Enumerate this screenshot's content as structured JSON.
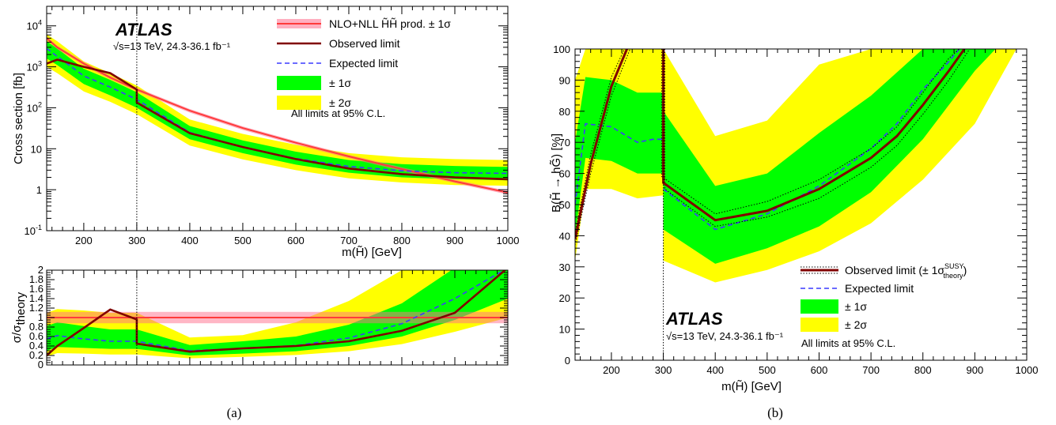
{
  "chart_data": [
    {
      "id": "a-top",
      "type": "line",
      "yscale": "log",
      "xlim": [
        130,
        1000
      ],
      "ylim": [
        0.1,
        30000
      ],
      "xlabel": "m(H̃) [GeV]",
      "ylabel": "Cross section [fb]",
      "xticks": [
        "200",
        "300",
        "400",
        "500",
        "600",
        "700",
        "800",
        "900",
        "1000"
      ],
      "yticks": [
        {
          "value": 0.1,
          "base": "10",
          "exp": "-1"
        },
        {
          "value": 1,
          "base": "1",
          "exp": ""
        },
        {
          "value": 10,
          "base": "10",
          "exp": ""
        },
        {
          "value": 100,
          "base": "10",
          "exp": "2"
        },
        {
          "value": 1000,
          "base": "10",
          "exp": "3"
        },
        {
          "value": 10000,
          "base": "10",
          "exp": "4"
        }
      ],
      "vline_x": 300,
      "atlas_label": "ATLAS",
      "lumi_label": "√s=13 TeV, 24.3-36.1 fb⁻¹",
      "annotation": "All limits at 95% C.L.",
      "legend": [
        {
          "label": "NLO+NLL H̃H̃ prod. ± 1σ",
          "style": "theory"
        },
        {
          "label": "Observed limit",
          "style": "observed"
        },
        {
          "label": "Expected limit",
          "style": "expected"
        },
        {
          "label": "± 1σ",
          "style": "band1"
        },
        {
          "label": "± 2σ",
          "style": "band2"
        }
      ],
      "theory": {
        "x": [
          130,
          150,
          200,
          250,
          300,
          400,
          500,
          600,
          700,
          800,
          900,
          1000
        ],
        "y": [
          5000,
          3000,
          1200,
          550,
          280,
          85,
          32,
          14,
          6.5,
          3.2,
          1.6,
          0.85
        ]
      },
      "observed": {
        "x": [
          130,
          150,
          200,
          250,
          300,
          300,
          400,
          500,
          600,
          700,
          800,
          900,
          1000
        ],
        "y": [
          1200,
          1500,
          1000,
          700,
          280,
          135,
          24,
          11,
          5.6,
          3.3,
          2.4,
          2.0,
          1.8
        ]
      },
      "expected": {
        "x": [
          130,
          150,
          200,
          250,
          300,
          400,
          500,
          600,
          700,
          800,
          900,
          1000
        ],
        "y": [
          2800,
          1800,
          600,
          320,
          160,
          25,
          11,
          5.8,
          3.7,
          2.9,
          2.6,
          2.5
        ]
      },
      "band1": {
        "x": [
          130,
          150,
          200,
          250,
          300,
          400,
          500,
          600,
          700,
          800,
          900,
          1000
        ],
        "lo": [
          1600,
          1100,
          380,
          200,
          100,
          17,
          7.8,
          4.1,
          2.6,
          2.0,
          1.8,
          1.7
        ],
        "hi": [
          4200,
          2800,
          900,
          480,
          240,
          36,
          16,
          8.5,
          5.3,
          4.2,
          3.8,
          3.6
        ]
      },
      "band2": {
        "x": [
          130,
          150,
          200,
          250,
          300,
          400,
          500,
          600,
          700,
          800,
          900,
          1000
        ],
        "lo": [
          1000,
          700,
          250,
          140,
          70,
          12,
          5.5,
          3.0,
          1.9,
          1.5,
          1.3,
          1.25
        ],
        "hi": [
          6200,
          4200,
          1350,
          700,
          350,
          52,
          23,
          12.5,
          7.8,
          6.2,
          5.6,
          5.3
        ]
      }
    },
    {
      "id": "a-bottom",
      "type": "line",
      "xlim": [
        130,
        1000
      ],
      "ylim": [
        0,
        2
      ],
      "ylabel": "σ/σ_theory",
      "yticks": [
        "0",
        "0.2",
        "0.4",
        "0.6",
        "0.8",
        "1",
        "1.2",
        "1.4",
        "1.6",
        "1.8",
        "2"
      ],
      "vline_x": 300,
      "theory_band": [
        0.88,
        1.12
      ],
      "observed": {
        "x": [
          130,
          150,
          200,
          250,
          300,
          300,
          400,
          500,
          600,
          700,
          800,
          900,
          1000
        ],
        "y": [
          0.2,
          0.4,
          0.78,
          1.17,
          0.96,
          0.45,
          0.28,
          0.35,
          0.4,
          0.5,
          0.72,
          1.1,
          2.05
        ]
      },
      "expected": {
        "x": [
          130,
          150,
          200,
          250,
          300,
          400,
          500,
          600,
          700,
          800,
          900,
          1000
        ],
        "y": [
          0.55,
          0.62,
          0.55,
          0.5,
          0.5,
          0.3,
          0.35,
          0.41,
          0.57,
          0.87,
          1.4,
          2.05
        ]
      },
      "band1": {
        "x": [
          130,
          150,
          200,
          250,
          300,
          400,
          500,
          600,
          700,
          800,
          900,
          1000
        ],
        "lo": [
          0.3,
          0.38,
          0.36,
          0.34,
          0.34,
          0.2,
          0.24,
          0.29,
          0.4,
          0.6,
          0.95,
          1.4
        ],
        "hi": [
          0.82,
          0.9,
          0.82,
          0.75,
          0.75,
          0.42,
          0.5,
          0.6,
          0.85,
          1.3,
          2.05,
          2.5
        ]
      },
      "band2": {
        "x": [
          130,
          150,
          200,
          250,
          300,
          400,
          500,
          600,
          700,
          800,
          900,
          1000
        ],
        "lo": [
          0.18,
          0.25,
          0.24,
          0.22,
          0.22,
          0.14,
          0.17,
          0.21,
          0.29,
          0.44,
          0.7,
          1.0
        ],
        "hi": [
          1.1,
          1.18,
          1.15,
          1.1,
          1.1,
          0.58,
          0.63,
          0.9,
          1.35,
          2.0,
          2.6,
          3.0
        ]
      }
    },
    {
      "id": "b",
      "type": "line",
      "xlim": [
        130,
        1000
      ],
      "ylim": [
        0,
        100
      ],
      "xlabel": "m(H̃)  [GeV]",
      "ylabel": "B(H̃ → hG̃) [%]",
      "xticks": [
        "200",
        "300",
        "400",
        "500",
        "600",
        "700",
        "800",
        "900",
        "1000"
      ],
      "yticks": [
        "0",
        "10",
        "20",
        "30",
        "40",
        "50",
        "60",
        "70",
        "80",
        "90",
        "100"
      ],
      "vline_x": 300,
      "atlas_label": "ATLAS",
      "lumi_label": "√s=13 TeV, 24.3-36.1 fb⁻¹",
      "annotation": "All limits at 95% C.L.",
      "legend": [
        {
          "label": "Observed limit (± 1σ",
          "sup": "SUSY",
          "sub": "theory",
          "tail": ")",
          "style": "observed"
        },
        {
          "label": "Expected limit",
          "style": "expected"
        },
        {
          "label": "± 1σ",
          "style": "band1"
        },
        {
          "label": "± 2σ",
          "style": "band2"
        }
      ],
      "left_region": {
        "observed": {
          "x": [
            130,
            160,
            200,
            230
          ],
          "y": [
            39,
            63,
            88,
            100
          ]
        },
        "observed_up": {
          "x": [
            130,
            160,
            200,
            225
          ],
          "y": [
            41,
            66,
            91,
            100
          ]
        },
        "observed_down": {
          "x": [
            130,
            160,
            200,
            236
          ],
          "y": [
            37,
            60,
            85,
            100
          ]
        },
        "expected": {
          "x": [
            130,
            150,
            200,
            250,
            280,
            300
          ],
          "y": [
            50,
            76,
            75,
            70,
            71,
            71
          ]
        },
        "band1": {
          "x": [
            130,
            150,
            200,
            250,
            300
          ],
          "lo": [
            40,
            65,
            64,
            60,
            60
          ],
          "hi": [
            70,
            91,
            90,
            86,
            86
          ]
        },
        "band2": {
          "x": [
            130,
            150,
            200,
            250,
            300
          ],
          "lo": [
            32,
            55,
            55,
            52,
            53
          ],
          "hi": [
            90,
            100,
            100,
            100,
            100
          ]
        }
      },
      "right_region": {
        "observed": {
          "x": [
            300,
            300,
            400,
            500,
            600,
            700,
            750,
            800,
            850,
            880
          ],
          "y": [
            100,
            57,
            45,
            48,
            55,
            65,
            72,
            82,
            93,
            100
          ]
        },
        "observed_up": {
          "x": [
            297,
            297,
            400,
            500,
            600,
            700,
            750,
            800,
            850,
            870
          ],
          "y": [
            100,
            59,
            47,
            51,
            58,
            68,
            75,
            86,
            97,
            100
          ]
        },
        "observed_down": {
          "x": [
            303,
            303,
            400,
            500,
            600,
            700,
            750,
            800,
            850,
            890
          ],
          "y": [
            100,
            55,
            43,
            46,
            52,
            62,
            69,
            79,
            90,
            100
          ]
        },
        "expected": {
          "x": [
            300,
            400,
            500,
            600,
            700,
            750,
            800,
            850,
            870
          ],
          "y": [
            55,
            42,
            47,
            56,
            68,
            76,
            87,
            96,
            100
          ]
        },
        "band1": {
          "x": [
            300,
            400,
            500,
            600,
            700,
            800,
            900,
            940
          ],
          "lo": [
            42,
            31,
            36,
            43,
            54,
            71,
            93,
            100
          ],
          "hi": [
            80,
            56,
            60,
            73,
            85,
            100,
            100,
            100
          ]
        },
        "band2": {
          "x": [
            300,
            400,
            500,
            600,
            700,
            800,
            900,
            980
          ],
          "lo": [
            32,
            25,
            29,
            35,
            44,
            58,
            76,
            100
          ],
          "hi": [
            100,
            72,
            77,
            95,
            100,
            100,
            100,
            100
          ]
        }
      }
    }
  ],
  "captions": {
    "a": "(a)",
    "b": "(b)"
  }
}
